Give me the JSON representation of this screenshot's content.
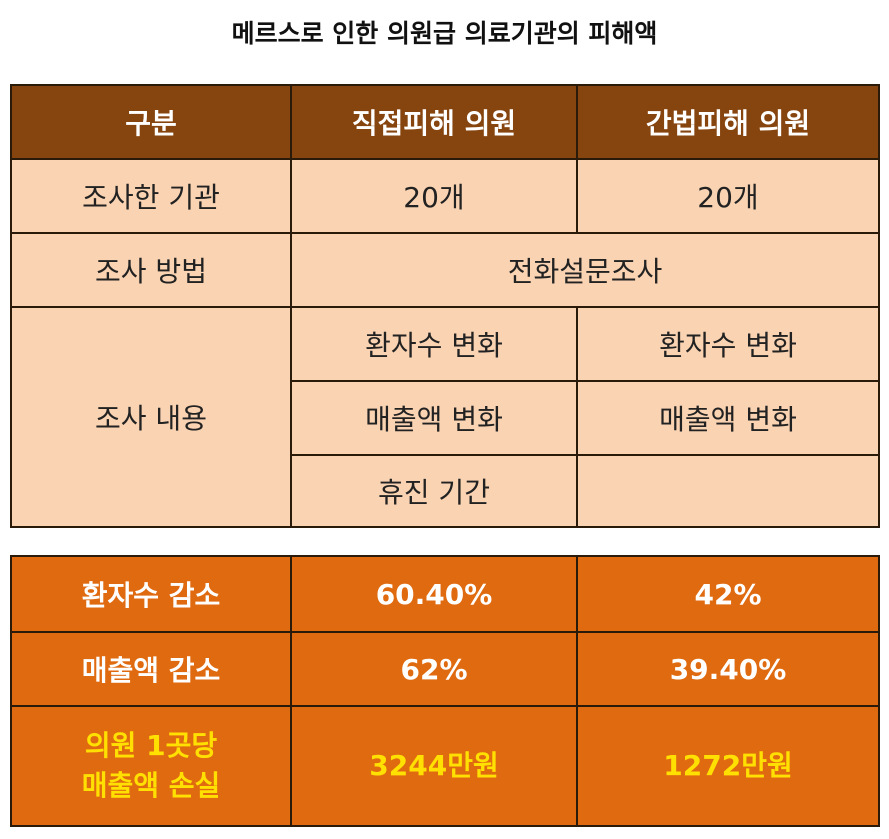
{
  "title": "메르스로 인한 의원급 의료기관의 피해액",
  "survey_table": {
    "header": [
      "구분",
      "직접피해 의원",
      "간법피해 의원"
    ],
    "institutions": {
      "label": "조사한 기관",
      "direct": "20개",
      "indirect": "20개"
    },
    "method": {
      "label": "조사 방법",
      "value": "전화설문조사"
    },
    "content": {
      "label": "조사 내용",
      "direct": [
        "환자수 변화",
        "매출액 변화",
        "휴진 기간"
      ],
      "indirect": [
        "환자수 변화",
        "매출액 변화",
        ""
      ]
    }
  },
  "result_table": {
    "patients": {
      "label": "환자수 감소",
      "direct": "60.40%",
      "indirect": "42%"
    },
    "sales": {
      "label": "매출액 감소",
      "direct": "62%",
      "indirect": "39.40%"
    },
    "loss": {
      "label_line1": "의원 1곳당",
      "label_line2": "매출액 손실",
      "direct": "3244만원",
      "indirect": "1272만원"
    }
  },
  "colors": {
    "header_bg": "#86440f",
    "body_bg": "#f9d3b2",
    "result_bg": "#e06a10",
    "highlight_text": "#ffe000"
  }
}
